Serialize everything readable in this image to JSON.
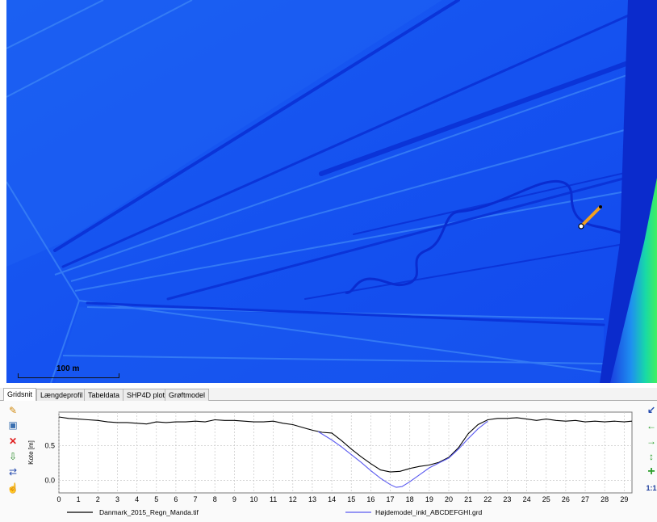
{
  "map": {
    "scale_label": "100 m",
    "colors": {
      "base": "#1450f0",
      "dark": "#0a2fd0",
      "light": "#2a7af5",
      "river": "#0728c8",
      "green": "#18e08a",
      "profile_line": "#f0a020"
    }
  },
  "tabs": [
    {
      "label": "Gridsnit",
      "active": true
    },
    {
      "label": "Længdeprofil",
      "active": false
    },
    {
      "label": "Tabeldata",
      "active": false
    },
    {
      "label": "SHP4D plot",
      "active": false
    },
    {
      "label": "Grøftmodel",
      "active": false
    }
  ],
  "left_tools": [
    {
      "icon": "pencil-icon",
      "glyph": "✎"
    },
    {
      "icon": "image-icon",
      "glyph": "▣"
    },
    {
      "icon": "delete-icon",
      "glyph": "✕"
    },
    {
      "icon": "import-icon",
      "glyph": "⇩"
    },
    {
      "icon": "swap-icon",
      "glyph": "⇄"
    },
    {
      "icon": "hand-icon",
      "glyph": "☝"
    }
  ],
  "right_tools": [
    {
      "icon": "arrow-diagonal-icon",
      "glyph": "↙"
    },
    {
      "icon": "arrow-left-icon",
      "glyph": "←"
    },
    {
      "icon": "arrow-right-icon",
      "glyph": "→"
    },
    {
      "icon": "arrow-vertical-icon",
      "glyph": "↕"
    },
    {
      "icon": "plus-icon",
      "glyph": "+"
    },
    {
      "icon": "one-to-one-icon",
      "glyph": "1:1"
    }
  ],
  "chart_data": {
    "type": "line",
    "ylabel": "Kote [m]",
    "xlabel": "",
    "xlim": [
      0,
      29.4
    ],
    "ylim": [
      -0.18,
      0.98
    ],
    "x_ticks": [
      0,
      1,
      2,
      3,
      4,
      5,
      6,
      7,
      8,
      9,
      10,
      11,
      12,
      13,
      14,
      15,
      16,
      17,
      18,
      19,
      20,
      21,
      22,
      23,
      24,
      25,
      26,
      27,
      28,
      29
    ],
    "y_ticks": [
      0.0,
      0.5
    ],
    "y_tick_labels": [
      "0.0",
      "0.5"
    ],
    "grid": true,
    "legend_position": "bottom",
    "series": [
      {
        "name": "Danmark_2015_Regn_Manda.tif",
        "color": "#000000",
        "x": [
          0,
          0.5,
          1,
          1.5,
          2,
          2.5,
          3,
          3.5,
          4,
          4.5,
          5,
          5.5,
          6,
          6.5,
          7,
          7.5,
          8,
          8.5,
          9,
          9.5,
          10,
          10.5,
          11,
          11.5,
          12,
          12.5,
          13,
          13.5,
          14,
          14.5,
          15,
          15.5,
          16,
          16.5,
          17,
          17.5,
          18,
          18.5,
          19,
          19.5,
          20,
          20.5,
          21,
          21.5,
          22,
          22.5,
          23,
          23.5,
          24,
          24.5,
          25,
          25.5,
          26,
          26.5,
          27,
          27.5,
          28,
          28.5,
          29,
          29.4
        ],
        "y": [
          0.91,
          0.89,
          0.88,
          0.87,
          0.86,
          0.84,
          0.83,
          0.83,
          0.82,
          0.81,
          0.84,
          0.83,
          0.84,
          0.84,
          0.85,
          0.84,
          0.87,
          0.86,
          0.86,
          0.85,
          0.84,
          0.84,
          0.85,
          0.82,
          0.8,
          0.76,
          0.72,
          0.69,
          0.68,
          0.57,
          0.45,
          0.34,
          0.24,
          0.15,
          0.12,
          0.13,
          0.17,
          0.2,
          0.22,
          0.26,
          0.33,
          0.47,
          0.67,
          0.8,
          0.87,
          0.89,
          0.89,
          0.9,
          0.88,
          0.86,
          0.88,
          0.86,
          0.85,
          0.86,
          0.84,
          0.85,
          0.84,
          0.85,
          0.84,
          0.85
        ]
      },
      {
        "name": "Højdemodel_inkl_ABCDEFGHI.grd",
        "color": "#5a5af0",
        "x": [
          13.3,
          14,
          14.5,
          15,
          15.5,
          16,
          16.5,
          17,
          17.3,
          17.6,
          18,
          18.5,
          19,
          19.5,
          20,
          20.5,
          21,
          21.5,
          22
        ],
        "y": [
          0.7,
          0.58,
          0.48,
          0.37,
          0.26,
          0.14,
          0.03,
          -0.06,
          -0.1,
          -0.09,
          -0.02,
          0.08,
          0.18,
          0.25,
          0.32,
          0.45,
          0.6,
          0.74,
          0.85
        ]
      }
    ]
  }
}
